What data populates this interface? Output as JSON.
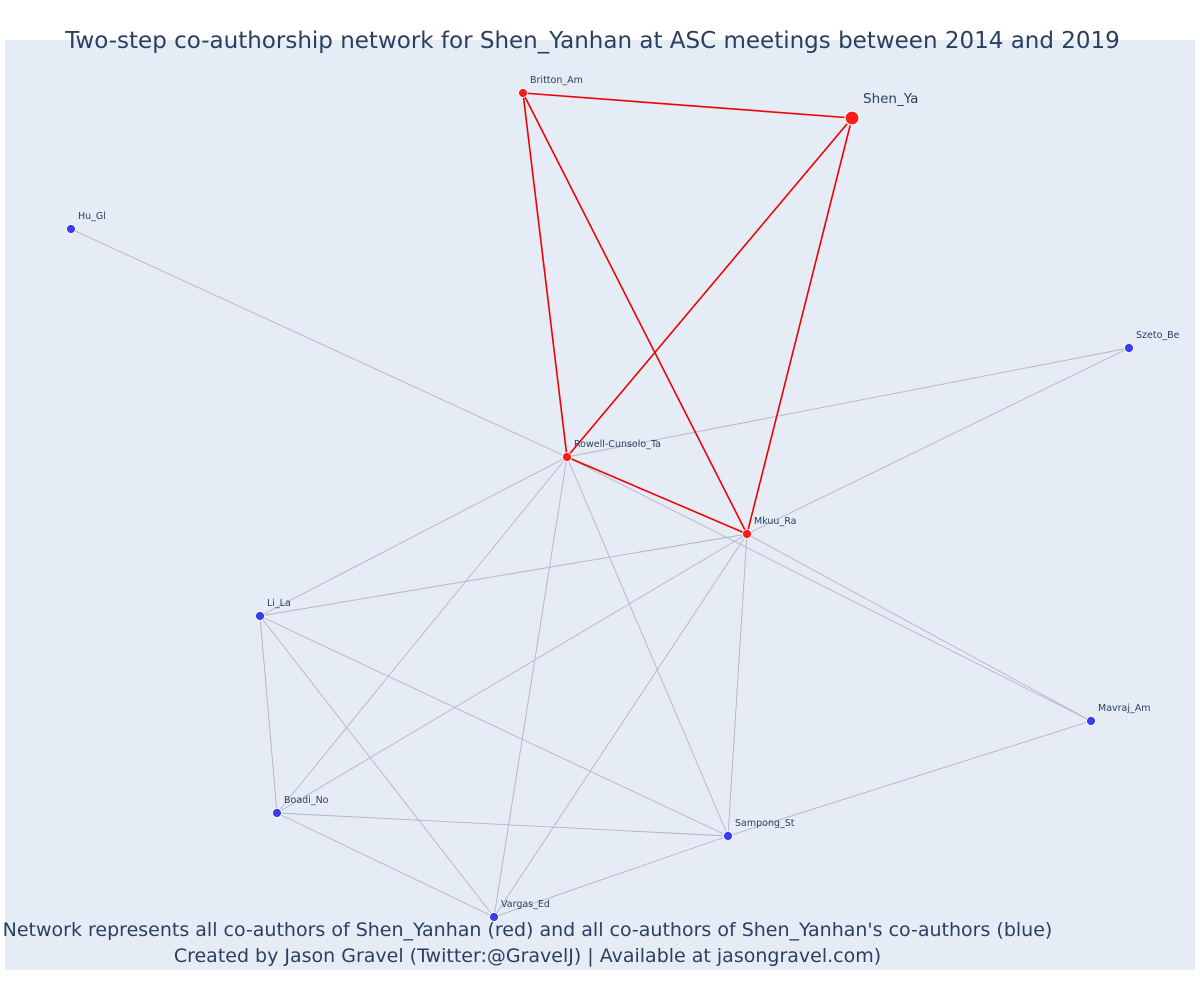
{
  "title": "Two-step co-authorship network for Shen_Yanhan at ASC meetings between 2014 and 2019",
  "footer": {
    "line1": "Network represents all co-authors of Shen_Yanhan (red) and all co-authors of Shen_Yanhan's co-authors (blue)",
    "line2": "Created by Jason Gravel (Twitter:@GravelJ) | Available at jasongravel.com)"
  },
  "colors": {
    "background": "#e5ecf6",
    "direct": "#ff1a1a",
    "indirect": "#3b3bf0",
    "edge_direct": "#ee0000",
    "edge_indirect": "#b4b4c8",
    "text": "#2a3f5f"
  },
  "nodes": [
    {
      "id": "Shen_Ya",
      "group": "focal"
    },
    {
      "id": "Britton_Am",
      "group": "direct"
    },
    {
      "id": "Rowell-Cunsolo_Ta",
      "group": "direct"
    },
    {
      "id": "Mkuu_Ra",
      "group": "direct"
    },
    {
      "id": "Hu_Gl",
      "group": "indirect"
    },
    {
      "id": "Szeto_Be",
      "group": "indirect"
    },
    {
      "id": "Li_La",
      "group": "indirect"
    },
    {
      "id": "Mavraj_Am",
      "group": "indirect"
    },
    {
      "id": "Boadi_No",
      "group": "indirect"
    },
    {
      "id": "Sampong_St",
      "group": "indirect"
    },
    {
      "id": "Vargas_Ed",
      "group": "indirect"
    }
  ],
  "edges": [
    [
      "Britton_Am",
      "Shen_Ya",
      "direct"
    ],
    [
      "Britton_Am",
      "Rowell-Cunsolo_Ta",
      "direct"
    ],
    [
      "Britton_Am",
      "Mkuu_Ra",
      "direct"
    ],
    [
      "Shen_Ya",
      "Rowell-Cunsolo_Ta",
      "direct"
    ],
    [
      "Shen_Ya",
      "Mkuu_Ra",
      "direct"
    ],
    [
      "Rowell-Cunsolo_Ta",
      "Mkuu_Ra",
      "direct"
    ],
    [
      "Hu_Gl",
      "Rowell-Cunsolo_Ta",
      "indirect"
    ],
    [
      "Szeto_Be",
      "Rowell-Cunsolo_Ta",
      "indirect"
    ],
    [
      "Szeto_Be",
      "Mkuu_Ra",
      "indirect"
    ],
    [
      "Rowell-Cunsolo_Ta",
      "Li_La",
      "indirect"
    ],
    [
      "Rowell-Cunsolo_Ta",
      "Boadi_No",
      "indirect"
    ],
    [
      "Rowell-Cunsolo_Ta",
      "Vargas_Ed",
      "indirect"
    ],
    [
      "Rowell-Cunsolo_Ta",
      "Sampong_St",
      "indirect"
    ],
    [
      "Rowell-Cunsolo_Ta",
      "Mavraj_Am",
      "indirect"
    ],
    [
      "Mkuu_Ra",
      "Li_La",
      "indirect"
    ],
    [
      "Mkuu_Ra",
      "Boadi_No",
      "indirect"
    ],
    [
      "Mkuu_Ra",
      "Vargas_Ed",
      "indirect"
    ],
    [
      "Mkuu_Ra",
      "Sampong_St",
      "indirect"
    ],
    [
      "Mkuu_Ra",
      "Mavraj_Am",
      "indirect"
    ],
    [
      "Li_La",
      "Boadi_No",
      "indirect"
    ],
    [
      "Li_La",
      "Vargas_Ed",
      "indirect"
    ],
    [
      "Li_La",
      "Sampong_St",
      "indirect"
    ],
    [
      "Boadi_No",
      "Sampong_St",
      "indirect"
    ],
    [
      "Boadi_No",
      "Vargas_Ed",
      "indirect"
    ],
    [
      "Vargas_Ed",
      "Sampong_St",
      "indirect"
    ],
    [
      "Sampong_St",
      "Mavraj_Am",
      "indirect"
    ]
  ]
}
